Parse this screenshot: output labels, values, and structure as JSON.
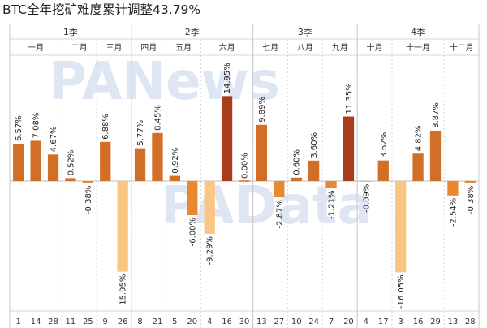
{
  "title": "BTC全年挖矿难度累计调整43.79%",
  "watermarks": {
    "top": "PANews",
    "bottom": "PAData"
  },
  "colors": {
    "up_small": "#d26f26",
    "up_big": "#a83c1b",
    "down_small": "#e9892f",
    "down_big": "#fbc584",
    "grid": "#d7d7d7",
    "watermark": "#dde6f2"
  },
  "chart_data": {
    "type": "bar",
    "title": "BTC全年挖矿难度累计调整43.79%",
    "quarters": [
      "1季",
      "2季",
      "3季",
      "4季"
    ],
    "months": [
      "一月",
      "二月",
      "三月",
      "四月",
      "五月",
      "六月",
      "七月",
      "八月",
      "九月",
      "十月",
      "十一月",
      "十二月"
    ],
    "months_per_quarter": [
      3,
      3,
      3,
      3
    ],
    "categories_per_month": [
      3,
      2,
      2,
      2,
      2,
      3,
      2,
      2,
      2,
      2,
      3,
      2
    ],
    "categories": [
      "1",
      "14",
      "28",
      "11",
      "25",
      "9",
      "26",
      "8",
      "21",
      "5",
      "20",
      "4",
      "16",
      "30",
      "13",
      "27",
      "10",
      "24",
      "7",
      "20",
      "4",
      "17",
      "3",
      "16",
      "29",
      "13",
      "28"
    ],
    "values": [
      6.57,
      7.08,
      4.67,
      0.52,
      -0.38,
      6.88,
      -15.95,
      5.77,
      8.45,
      0.92,
      -6.0,
      -9.29,
      14.95,
      0.0,
      9.89,
      -2.87,
      0.6,
      3.6,
      -1.21,
      11.35,
      -0.09,
      3.62,
      -16.05,
      4.82,
      8.87,
      -2.54,
      -0.38
    ],
    "value_labels": [
      "6.57%",
      "7.08%",
      "4.67%",
      "0.52%",
      "-0.38%",
      "6.88%",
      "-15.95%",
      "5.77%",
      "8.45%",
      "0.92%",
      "-6.00%",
      "-9.29%",
      "14.95%",
      "0.00%",
      "9.89%",
      "-2.87%",
      "0.60%",
      "3.60%",
      "-1.21%",
      "11.35%",
      "-0.09%",
      "3.62%",
      "-16.05%",
      "4.82%",
      "8.87%",
      "-2.54%",
      "-0.38%"
    ],
    "ylim": [
      -17.5,
      16.5
    ],
    "xlabel": "",
    "ylabel": "",
    "legend": "none",
    "grid": false
  }
}
